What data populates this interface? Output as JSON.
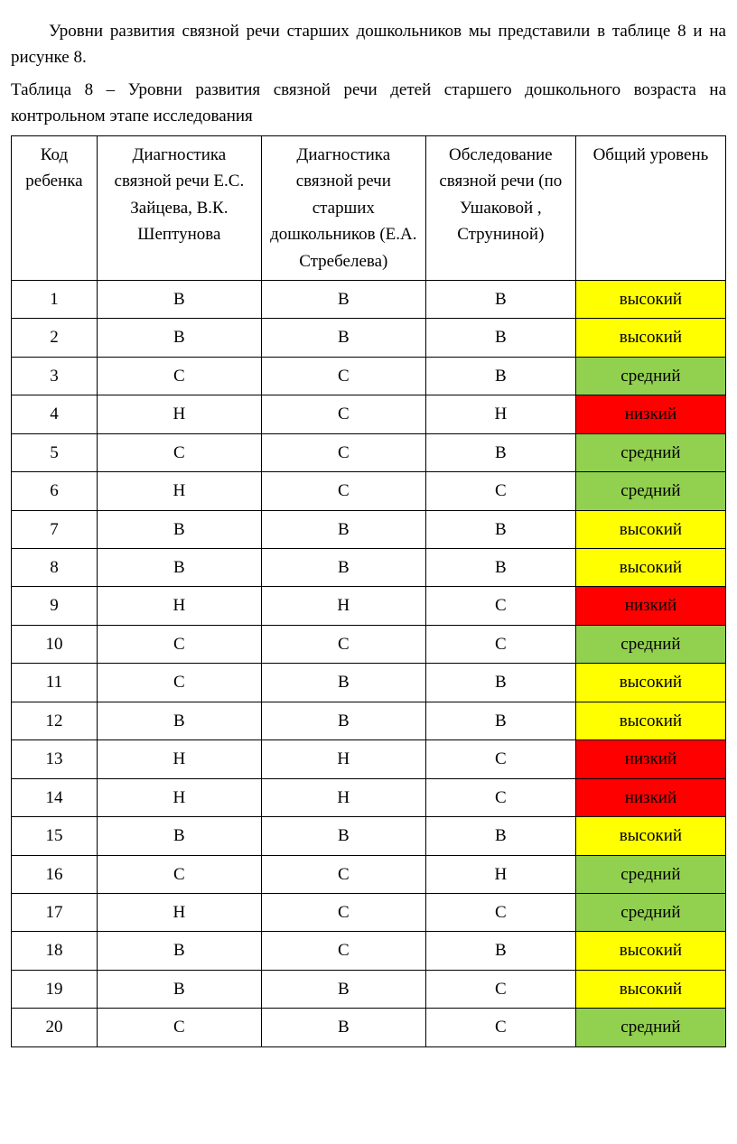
{
  "para1": "Уровни развития связной речи старших дошкольников мы представили в таблице 8  и на рисунке 8.",
  "para2": "Таблица 8 – Уровни развития связной речи детей старшего дошкольного возраста на контрольном этапе исследования",
  "table": {
    "headers": [
      "Код ребенка",
      "Диагностика связной речи Е.С. Зайцева, В.К. Шептунова",
      "Диагностика связной речи старших дошкольников (Е.А. Стребелева)",
      "Обследование связной речи (по Ушаковой , Струниной)",
      "Общий уровень"
    ],
    "level_colors": {
      "высокий": "#ffff00",
      "средний": "#92d050",
      "низкий": "#ff0000"
    },
    "rows": [
      {
        "id": "1",
        "c1": "В",
        "c2": "В",
        "c3": "В",
        "level": "высокий",
        "lvlClass": "lvl-high"
      },
      {
        "id": "2",
        "c1": "В",
        "c2": "В",
        "c3": "В",
        "level": "высокий",
        "lvlClass": "lvl-high"
      },
      {
        "id": "3",
        "c1": "С",
        "c2": "С",
        "c3": "В",
        "level": "средний",
        "lvlClass": "lvl-mid"
      },
      {
        "id": "4",
        "c1": "Н",
        "c2": "С",
        "c3": "Н",
        "level": "низкий",
        "lvlClass": "lvl-low"
      },
      {
        "id": "5",
        "c1": "С",
        "c2": "С",
        "c3": "В",
        "level": "средний",
        "lvlClass": "lvl-mid"
      },
      {
        "id": "6",
        "c1": "Н",
        "c2": "С",
        "c3": "С",
        "level": "средний",
        "lvlClass": "lvl-mid"
      },
      {
        "id": "7",
        "c1": "В",
        "c2": "В",
        "c3": "В",
        "level": "высокий",
        "lvlClass": "lvl-high"
      },
      {
        "id": "8",
        "c1": "В",
        "c2": "В",
        "c3": "В",
        "level": "высокий",
        "lvlClass": "lvl-high"
      },
      {
        "id": "9",
        "c1": "Н",
        "c2": "Н",
        "c3": "С",
        "level": "низкий",
        "lvlClass": "lvl-low"
      },
      {
        "id": "10",
        "c1": "С",
        "c2": "С",
        "c3": "С",
        "level": "средний",
        "lvlClass": "lvl-mid"
      },
      {
        "id": "11",
        "c1": "С",
        "c2": "В",
        "c3": "В",
        "level": "высокий",
        "lvlClass": "lvl-high"
      },
      {
        "id": "12",
        "c1": "В",
        "c2": "В",
        "c3": "В",
        "level": "высокий",
        "lvlClass": "lvl-high"
      },
      {
        "id": "13",
        "c1": "Н",
        "c2": "Н",
        "c3": "С",
        "level": "низкий",
        "lvlClass": "lvl-low"
      },
      {
        "id": "14",
        "c1": "Н",
        "c2": "Н",
        "c3": "С",
        "level": "низкий",
        "lvlClass": "lvl-low"
      },
      {
        "id": "15",
        "c1": "В",
        "c2": "В",
        "c3": "В",
        "level": "высокий",
        "lvlClass": "lvl-high"
      },
      {
        "id": "16",
        "c1": "С",
        "c2": "С",
        "c3": "Н",
        "level": "средний",
        "lvlClass": "lvl-mid"
      },
      {
        "id": "17",
        "c1": "Н",
        "c2": "С",
        "c3": "С",
        "level": "средний",
        "lvlClass": "lvl-mid"
      },
      {
        "id": "18",
        "c1": "В",
        "c2": "С",
        "c3": "В",
        "level": "высокий",
        "lvlClass": "lvl-high"
      },
      {
        "id": "19",
        "c1": "В",
        "c2": "В",
        "c3": "С",
        "level": "высокий",
        "lvlClass": "lvl-high"
      },
      {
        "id": "20",
        "c1": "С",
        "c2": "В",
        "c3": "С",
        "level": "средний",
        "lvlClass": "lvl-mid"
      }
    ]
  }
}
